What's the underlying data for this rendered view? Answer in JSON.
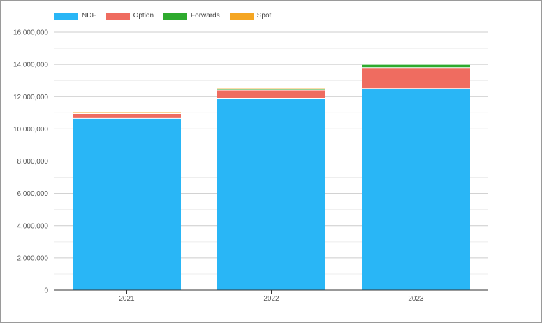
{
  "chart_data": {
    "type": "bar",
    "stacked": true,
    "title": "",
    "xlabel": "",
    "ylabel": "",
    "categories": [
      "2021",
      "2022",
      "2023"
    ],
    "ylim": [
      0,
      16000000
    ],
    "yticks": [
      0,
      2000000,
      4000000,
      6000000,
      8000000,
      10000000,
      12000000,
      14000000,
      16000000
    ],
    "ytick_labels": [
      "0",
      "2,000,000",
      "4,000,000",
      "6,000,000",
      "8,000,000",
      "10,000,000",
      "12,000,000",
      "14,000,000",
      "16,000,000"
    ],
    "grid": true,
    "legend_position": "top-left",
    "series": [
      {
        "name": "NDF",
        "color": "#29b6f6",
        "values": [
          10650000,
          11900000,
          12500000
        ]
      },
      {
        "name": "Option",
        "color": "#ef6c60",
        "values": [
          300000,
          500000,
          1300000
        ]
      },
      {
        "name": "Forwards",
        "color": "#2eaa2e",
        "values": [
          50000,
          70000,
          200000
        ]
      },
      {
        "name": "Spot",
        "color": "#f5a623",
        "values": [
          40000,
          40000,
          30000
        ]
      }
    ]
  }
}
